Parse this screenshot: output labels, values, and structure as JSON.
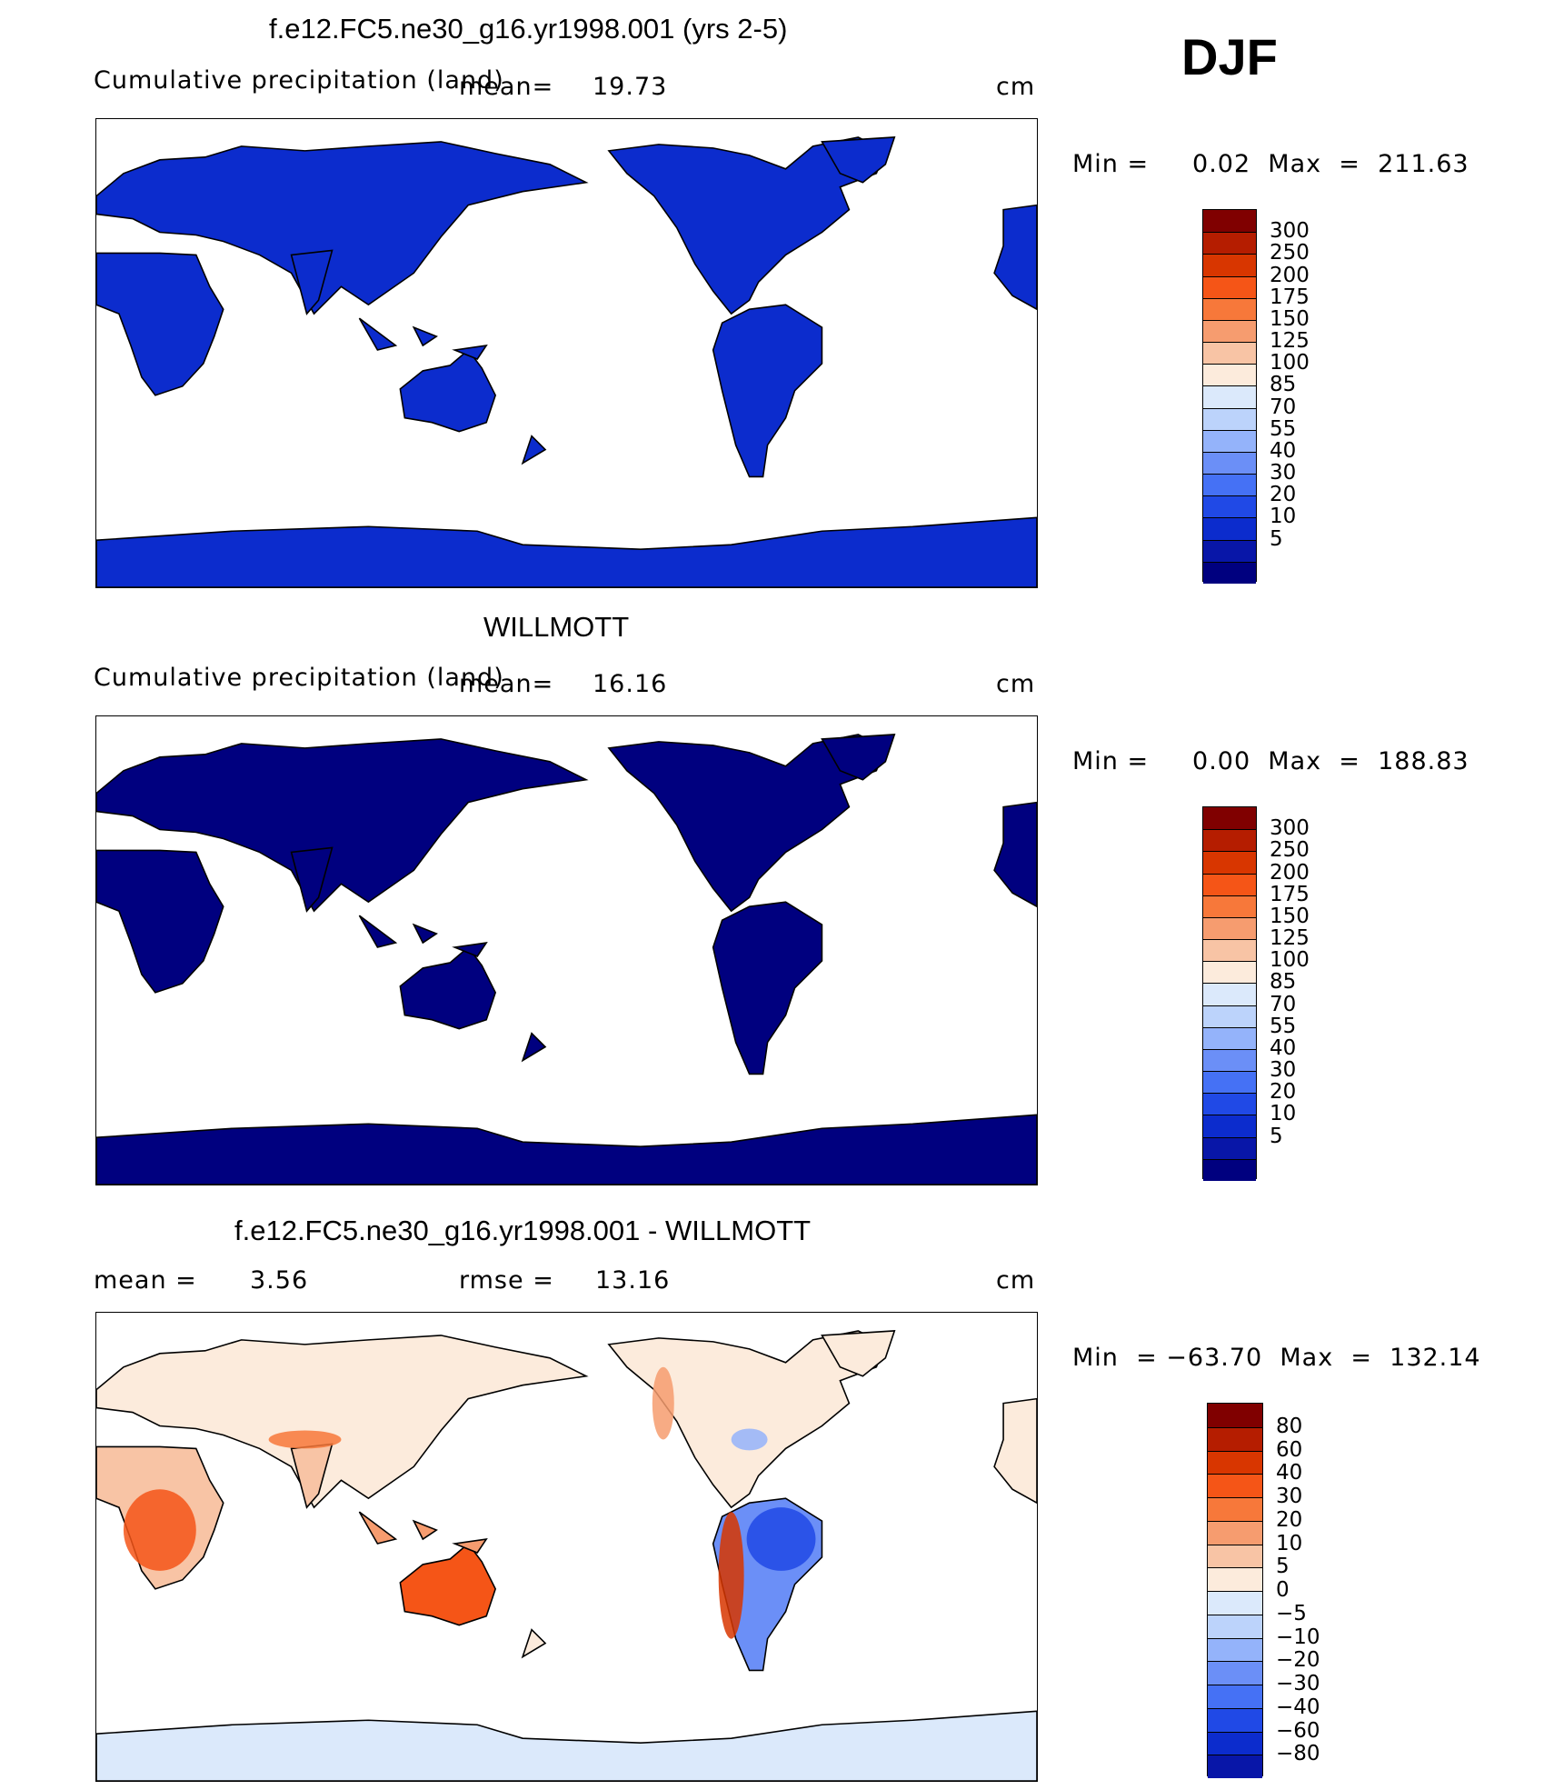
{
  "season": "DJF",
  "units": "cm",
  "panels": [
    {
      "title": "f.e12.FC5.ne30_g16.yr1998.001 (yrs 2-5)",
      "subtitle": "Cumulative precipitation (land)",
      "mean_label": "mean=",
      "mean_value": "19.73",
      "units": "cm",
      "minmax": "Min =     0.02  Max  =  211.63",
      "kind": "model",
      "colorbar": {
        "colors": [
          "#800000",
          "#b51d00",
          "#d83600",
          "#f55517",
          "#f7783a",
          "#f69c6f",
          "#f8c4a5",
          "#fcebdc",
          "#dbe9fb",
          "#bcd3fb",
          "#94b3fa",
          "#6b8ff7",
          "#4571f5",
          "#2049e6",
          "#0c2ccd",
          "#0816a8",
          "#00007f"
        ],
        "ticks": [
          "300",
          "250",
          "200",
          "175",
          "150",
          "125",
          "100",
          "85",
          "70",
          "55",
          "40",
          "30",
          "20",
          "10",
          "5"
        ]
      }
    },
    {
      "title": "WILLMOTT",
      "subtitle": "Cumulative precipitation (land)",
      "mean_label": "mean=",
      "mean_value": "16.16",
      "units": "cm",
      "minmax": "Min =     0.00  Max  =  188.83",
      "kind": "obs",
      "colorbar": {
        "colors": [
          "#800000",
          "#b51d00",
          "#d83600",
          "#f55517",
          "#f7783a",
          "#f69c6f",
          "#f8c4a5",
          "#fcebdc",
          "#dbe9fb",
          "#bcd3fb",
          "#94b3fa",
          "#6b8ff7",
          "#4571f5",
          "#2049e6",
          "#0c2ccd",
          "#0816a8",
          "#00007f"
        ],
        "ticks": [
          "300",
          "250",
          "200",
          "175",
          "150",
          "125",
          "100",
          "85",
          "70",
          "55",
          "40",
          "30",
          "20",
          "10",
          "5"
        ]
      }
    },
    {
      "title": "f.e12.FC5.ne30_g16.yr1998.001 - WILLMOTT",
      "mean_label": "mean =",
      "mean_value": "3.56",
      "rmse_label": "rmse =",
      "rmse_value": "13.16",
      "units": "cm",
      "minmax": "Min  = −63.70  Max  =  132.14",
      "kind": "diff",
      "colorbar": {
        "colors": [
          "#800000",
          "#b51d00",
          "#d83600",
          "#f55517",
          "#f7783a",
          "#f69c6f",
          "#f8c4a5",
          "#fcebdc",
          "#dbe9fb",
          "#bcd3fb",
          "#94b3fa",
          "#6b8ff7",
          "#4571f5",
          "#2049e6",
          "#0c2ccd",
          "#0816a8"
        ],
        "ticks": [
          "80",
          "60",
          "40",
          "30",
          "20",
          "10",
          "5",
          "0",
          "−5",
          "−10",
          "−20",
          "−30",
          "−40",
          "−60",
          "−80"
        ]
      }
    }
  ]
}
